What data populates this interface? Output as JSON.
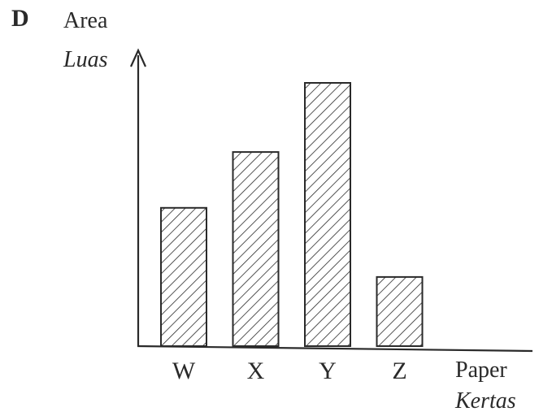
{
  "option_label": "D",
  "chart_data": {
    "type": "bar",
    "categories": [
      "W",
      "X",
      "Y",
      "Z"
    ],
    "values": [
      5.2,
      7.3,
      9.9,
      2.6
    ],
    "ylim": [
      0,
      11
    ],
    "ylabel": "Area",
    "ylabel_alt": "Luas",
    "xlabel": "Paper",
    "xlabel_alt": "Kertas",
    "bar_fill": "diagonal-hatch",
    "colors": {
      "stroke": "#2a2a2a",
      "background": "#ffffff"
    },
    "grid": false,
    "legend": "none"
  }
}
